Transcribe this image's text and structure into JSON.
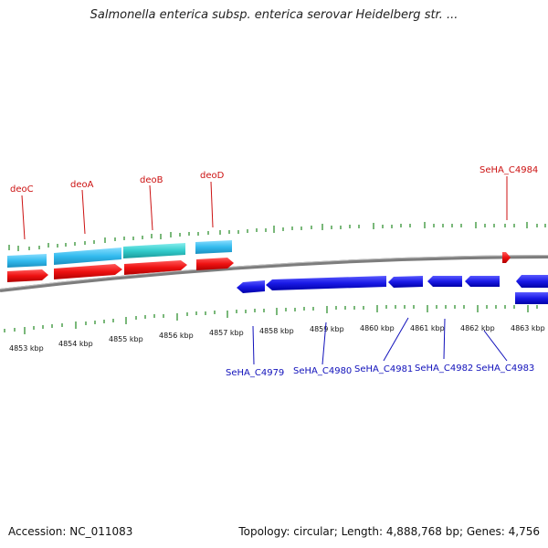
{
  "title": "Salmonella enterica subsp. enterica serovar Heidelberg str. ...",
  "footer": {
    "accession_label": "Accession:",
    "accession": "NC_011083",
    "topology_label": "Topology:",
    "topology": "circular",
    "length_label": "Length:",
    "length": "4,888,768 bp",
    "genes_label": "Genes:",
    "genes": "4,756"
  },
  "colors": {
    "forward_cds": "#ee1111",
    "reverse_cds": "#1a1ae6",
    "forward_label": "#cc1111",
    "reverse_label": "#1111bb",
    "operon_blue": "#33bbee",
    "operon_teal": "#33cccc",
    "tick": "#228822",
    "backbone": "#888888"
  },
  "scale_ticks": [
    {
      "label": "4853 kbp",
      "kbp": 4853
    },
    {
      "label": "4854 kbp",
      "kbp": 4854
    },
    {
      "label": "4855 kbp",
      "kbp": 4855
    },
    {
      "label": "4856 kbp",
      "kbp": 4856
    },
    {
      "label": "4857 kbp",
      "kbp": 4857
    },
    {
      "label": "4858 kbp",
      "kbp": 4858
    },
    {
      "label": "4859 kbp",
      "kbp": 4859
    },
    {
      "label": "4860 kbp",
      "kbp": 4860
    },
    {
      "label": "4861 kbp",
      "kbp": 4861
    },
    {
      "label": "4862 kbp",
      "kbp": 4862
    },
    {
      "label": "4863 kbp",
      "kbp": 4863
    }
  ],
  "forward_genes": [
    {
      "name": "deoC",
      "strand": "+"
    },
    {
      "name": "deoA",
      "strand": "+"
    },
    {
      "name": "deoB",
      "strand": "+"
    },
    {
      "name": "deoD",
      "strand": "+"
    },
    {
      "name": "SeHA_C4984",
      "strand": "+"
    }
  ],
  "reverse_genes": [
    {
      "name": "SeHA_C4979",
      "strand": "-"
    },
    {
      "name": "SeHA_C4980",
      "strand": "-"
    },
    {
      "name": "SeHA_C4981",
      "strand": "-"
    },
    {
      "name": "SeHA_C4982",
      "strand": "-"
    },
    {
      "name": "SeHA_C4983",
      "strand": "-"
    }
  ]
}
